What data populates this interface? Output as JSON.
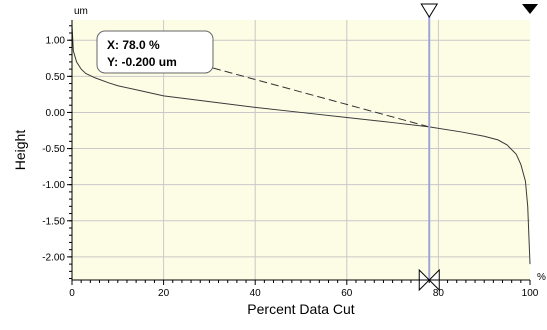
{
  "chart_data": {
    "type": "line",
    "title": "",
    "xlabel": "Percent Data Cut",
    "ylabel": "Height",
    "x_unit": "%",
    "y_unit": "um",
    "xlim": [
      0,
      100
    ],
    "ylim": [
      -2.32,
      1.28
    ],
    "grid": true,
    "x_ticks": [
      0,
      20,
      40,
      60,
      80,
      100
    ],
    "y_ticks": [
      "1.00",
      "0.50",
      "0.00",
      "-0.50",
      "-1.00",
      "-1.50",
      "-2.00"
    ],
    "series": [
      {
        "x": [
          0,
          0.3,
          1,
          2,
          3,
          5,
          8,
          10,
          15,
          20,
          30,
          40,
          50,
          60,
          70,
          78,
          85,
          90,
          93,
          95,
          97,
          98,
          99,
          99.5,
          100
        ],
        "y": [
          1.2,
          0.85,
          0.7,
          0.6,
          0.54,
          0.48,
          0.41,
          0.37,
          0.3,
          0.23,
          0.15,
          0.07,
          0.0,
          -0.07,
          -0.14,
          -0.2,
          -0.27,
          -0.33,
          -0.38,
          -0.45,
          -0.58,
          -0.72,
          -0.95,
          -1.3,
          -2.1
        ]
      }
    ],
    "cursor": {
      "x": 78.0,
      "y": -0.2,
      "readout_x": "X: 78.0 %",
      "readout_y": "Y: -0.200 um"
    },
    "colors": {
      "plot_bg": "#fdfde6",
      "grid": "#c8c8c8",
      "curve": "#3a3a3a",
      "cursor_line": "#9fa3d8",
      "marker": "#000000"
    }
  }
}
